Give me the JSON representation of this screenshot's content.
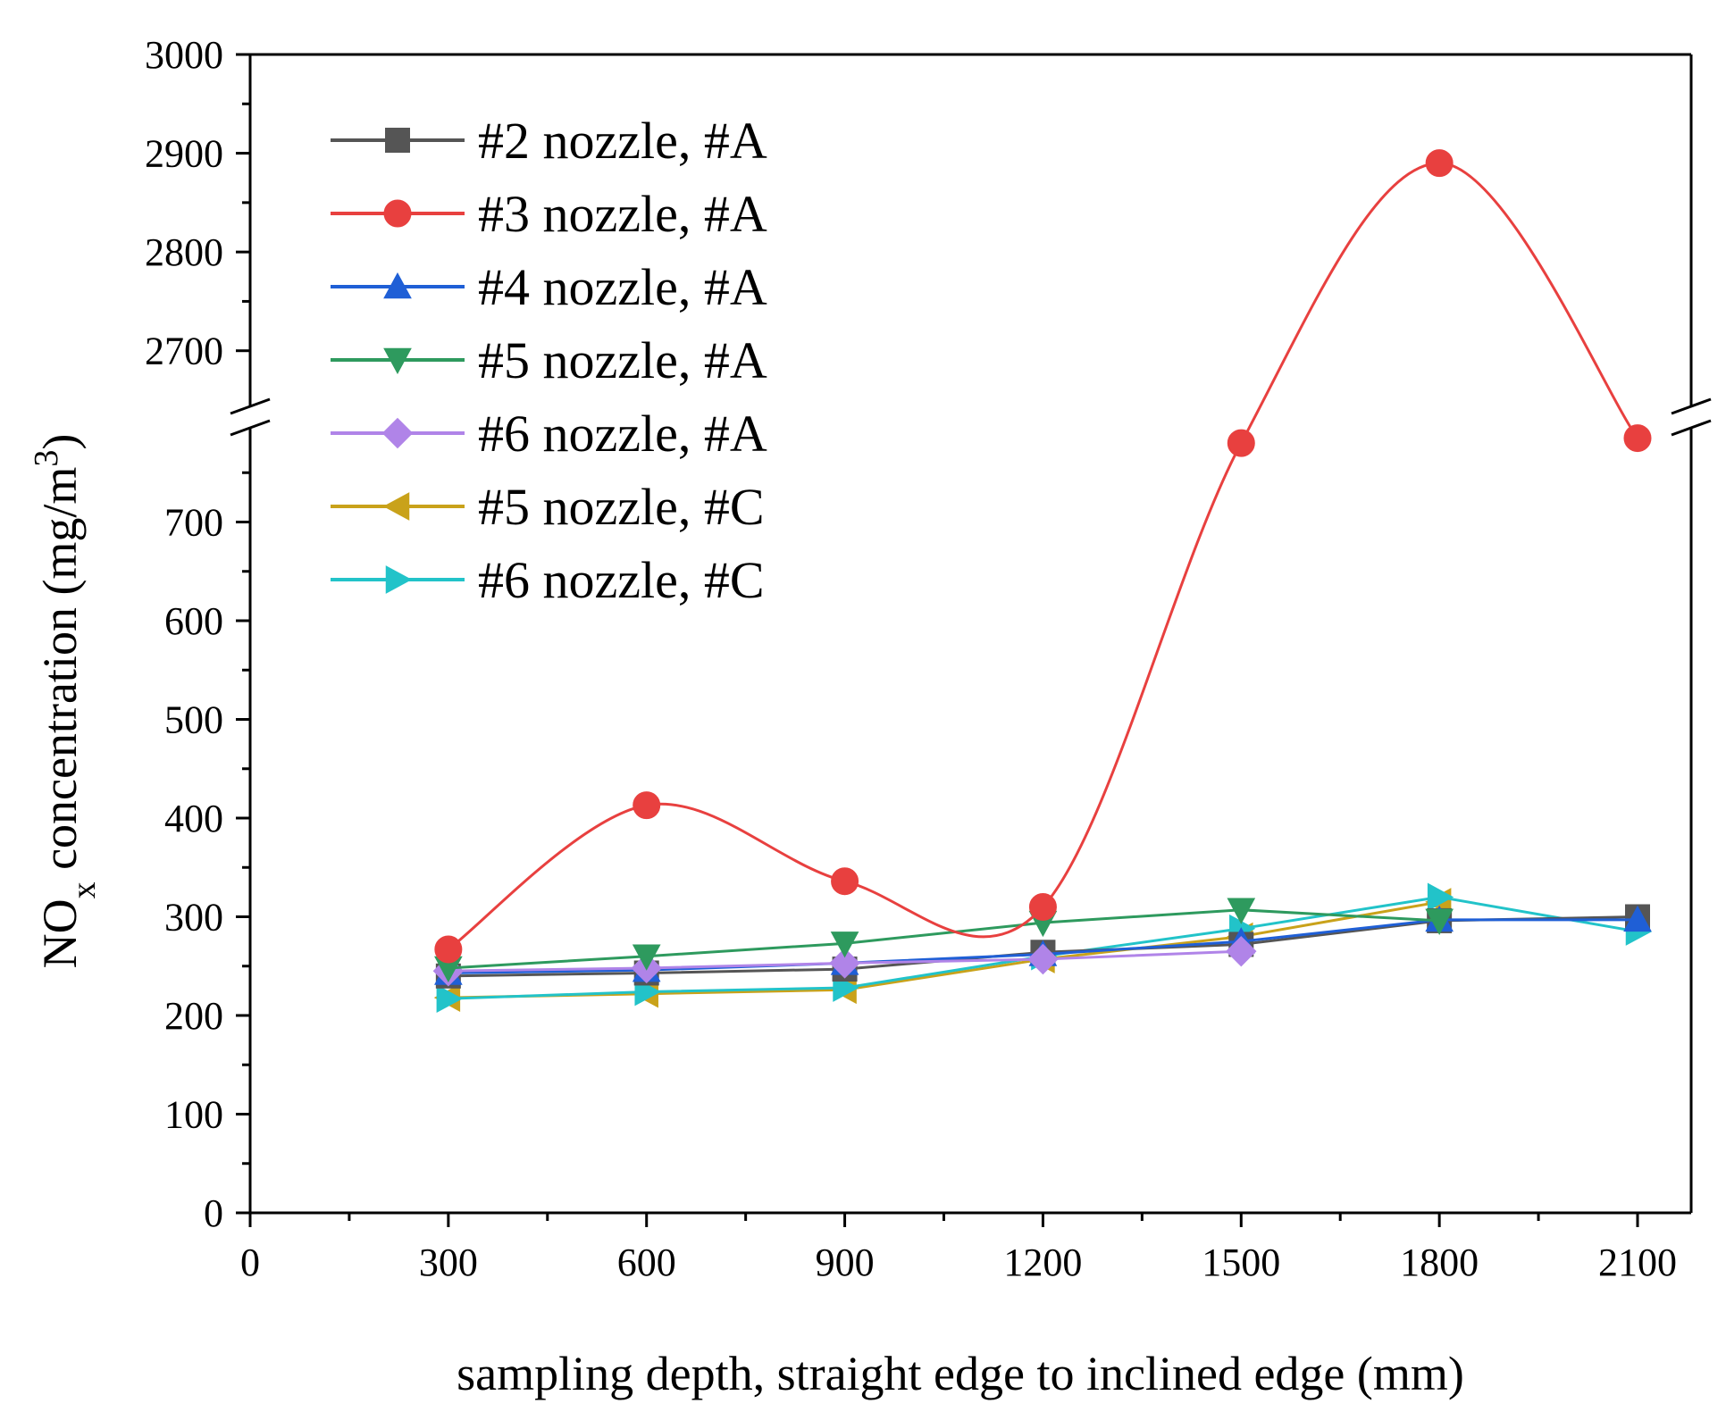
{
  "chart_data": {
    "type": "line",
    "xlabel": "sampling depth, straight edge to inclined edge  (mm)",
    "ylabel": {
      "prefix": "NO",
      "subscript": "x",
      "middle": " concentration (mg/m",
      "superscript": "3",
      "suffix": ")"
    },
    "x_ticks": [
      "0",
      "300",
      "600",
      "900",
      "1200",
      "1500",
      "1800",
      "2100"
    ],
    "y_ticks_lower": [
      "0",
      "100",
      "200",
      "300",
      "400",
      "500",
      "600",
      "700"
    ],
    "y_ticks_upper": [
      "2700",
      "2800",
      "2900",
      "3000"
    ],
    "xlim": [
      0,
      2100
    ],
    "ylim_lower": [
      0,
      800
    ],
    "ylim_upper": [
      2650,
      3000
    ],
    "axis_break": "y",
    "legend_position": "top-left",
    "series": [
      {
        "name": "#2 nozzle, #A",
        "color": "#555555",
        "marker": "square",
        "x": [
          300,
          600,
          900,
          1200,
          1500,
          1800,
          2100
        ],
        "y": [
          240,
          243,
          247,
          264,
          272,
          296,
          300
        ],
        "smooth": false
      },
      {
        "name": "#3 nozzle, #A",
        "color": "#e8403f",
        "marker": "circle",
        "x": [
          300,
          600,
          900,
          1200,
          1500,
          1800,
          2100
        ],
        "y": [
          267,
          413,
          336,
          310,
          780,
          2890,
          785
        ],
        "smooth": true
      },
      {
        "name": "#4 nozzle, #A",
        "color": "#1f5fd6",
        "marker": "triangle-up",
        "x": [
          300,
          600,
          900,
          1200,
          1500,
          1800,
          2100
        ],
        "y": [
          243,
          246,
          253,
          262,
          275,
          297,
          297
        ],
        "smooth": false
      },
      {
        "name": "#5 nozzle, #A",
        "color": "#2e9a5e",
        "marker": "triangle-down",
        "x": [
          300,
          600,
          900,
          1200,
          1500,
          1800
        ],
        "y": [
          248,
          260,
          273,
          294,
          307,
          296
        ],
        "smooth": false
      },
      {
        "name": "#6 nozzle, #A",
        "color": "#b084e8",
        "marker": "diamond",
        "x": [
          300,
          600,
          900,
          1200,
          1500
        ],
        "y": [
          245,
          248,
          253,
          257,
          265
        ],
        "smooth": false
      },
      {
        "name": "#5 nozzle, #C",
        "color": "#c9a21a",
        "marker": "triangle-left",
        "x": [
          300,
          600,
          900,
          1200,
          1500,
          1800
        ],
        "y": [
          218,
          222,
          226,
          257,
          280,
          315
        ],
        "smooth": false
      },
      {
        "name": "#6 nozzle, #C",
        "color": "#22c3c9",
        "marker": "triangle-right",
        "x": [
          300,
          600,
          900,
          1200,
          1500,
          1800,
          2100
        ],
        "y": [
          217,
          224,
          228,
          260,
          288,
          320,
          285
        ],
        "smooth": false
      }
    ]
  }
}
